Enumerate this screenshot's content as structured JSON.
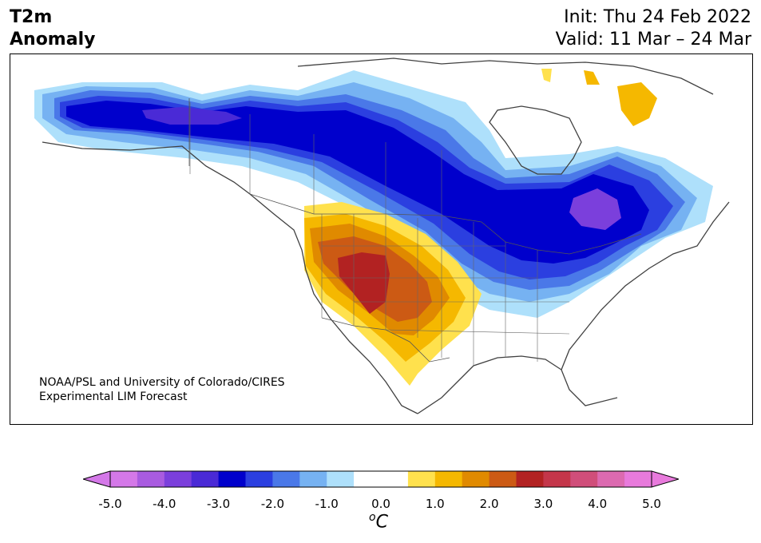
{
  "title": {
    "variable": "T2m",
    "subtitle": "Anomaly",
    "init": "Init: Thu 24 Feb 2022",
    "valid": "Valid: 11 Mar – 24 Mar"
  },
  "credit": {
    "line1": "NOAA/PSL and University of Colorado/CIRES",
    "line2": "Experimental LIM Forecast"
  },
  "colorbar": {
    "unit_base": "C",
    "unit_sup": "o",
    "tick_labels": [
      "-5.0",
      "-4.0",
      "-3.0",
      "-2.0",
      "-1.0",
      "0.0",
      "1.0",
      "2.0",
      "3.0",
      "4.0",
      "5.0"
    ],
    "levels": [
      -5.0,
      -4.5,
      -4.0,
      -3.5,
      -3.0,
      -2.5,
      -2.0,
      -1.5,
      -1.0,
      -0.5,
      0.5,
      1.0,
      1.5,
      2.0,
      2.5,
      3.0,
      3.5,
      4.0,
      4.5,
      5.0
    ],
    "colors": [
      "#d478e8",
      "#a95be0",
      "#7b3fdc",
      "#4a2ad6",
      "#0000cc",
      "#2b3fe0",
      "#4a78e8",
      "#76b2f2",
      "#aee0fb",
      "#ffffff",
      "#ffe14d",
      "#f5b800",
      "#e08a00",
      "#cc5a14",
      "#b22222",
      "#c4364a",
      "#d04e7a",
      "#dc6ab0",
      "#e87adc"
    ],
    "under_color": "#d478e8",
    "over_color": "#e87adc"
  },
  "legend_colors": {
    "strong_cold": "#0000cc",
    "cold": "#2b3fe0",
    "mid_cold": "#4a78e8",
    "light_cold": "#76b2f2",
    "pale_cold": "#aee0fb",
    "purple": "#7b3fdc",
    "pale_warm": "#ffe14d",
    "warm": "#f5b800",
    "mid_warm": "#e08a00",
    "hot": "#cc5a14",
    "very_hot": "#b22222"
  }
}
